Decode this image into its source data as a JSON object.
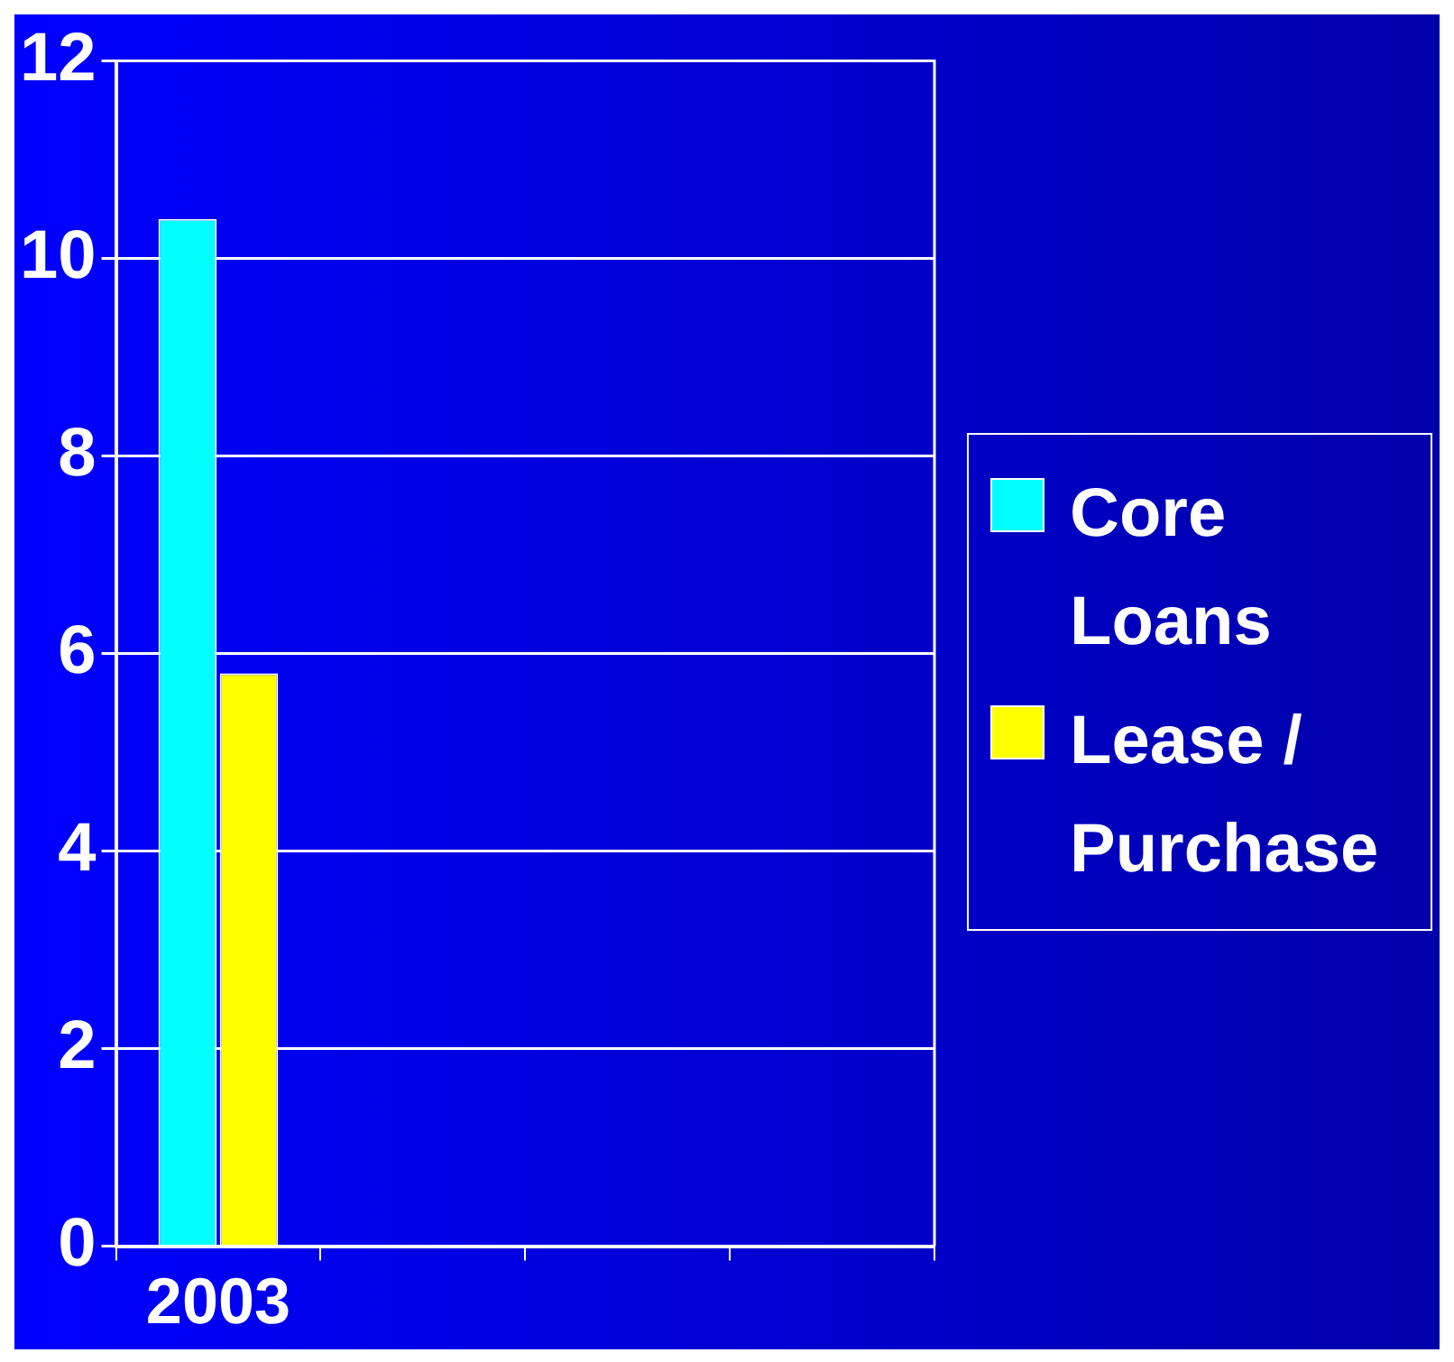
{
  "chart_data": {
    "type": "bar",
    "categories": [
      "2003",
      null,
      null,
      null
    ],
    "series": [
      {
        "name": "Core Loans",
        "color": "#00ffff",
        "values": [
          10.4,
          null,
          null,
          null
        ]
      },
      {
        "name": "Lease / Purchase",
        "color": "#ffff00",
        "values": [
          5.8,
          null,
          null,
          null
        ]
      }
    ],
    "ylim": [
      0,
      12
    ],
    "yticks": [
      0,
      2,
      4,
      6,
      8,
      10,
      12
    ],
    "grid": "y",
    "legend": "right"
  }
}
